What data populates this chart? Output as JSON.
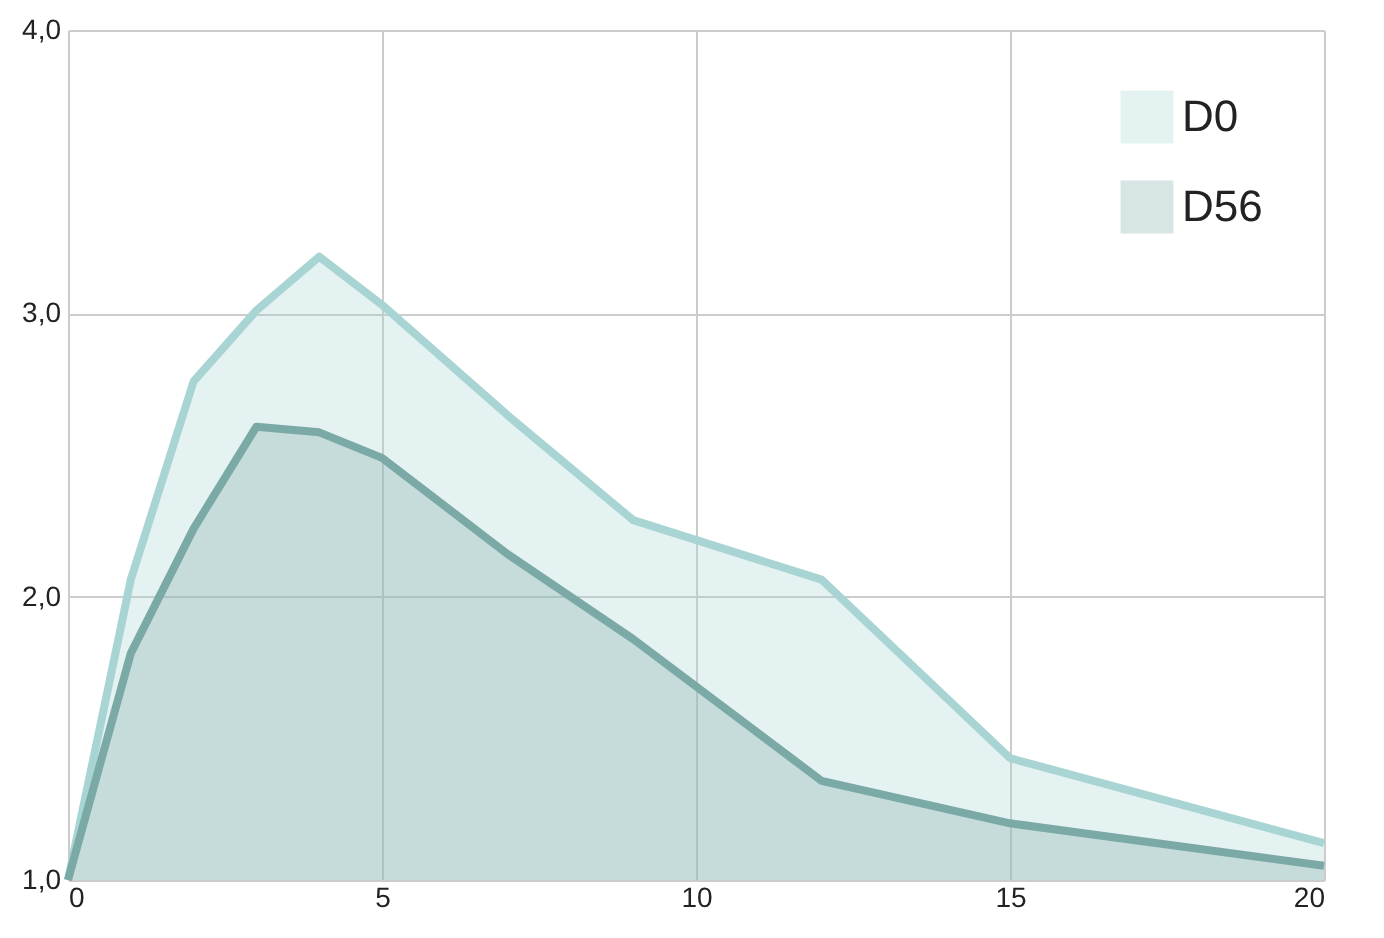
{
  "chart_data": {
    "type": "area",
    "x": [
      0,
      1,
      2,
      3,
      4,
      5,
      7,
      9,
      12,
      15,
      20
    ],
    "series": [
      {
        "name": "D0",
        "color": "#a8d5d3",
        "values": [
          1.0,
          2.06,
          2.76,
          3.01,
          3.2,
          3.03,
          2.64,
          2.27,
          2.06,
          1.43,
          1.13
        ]
      },
      {
        "name": "D56",
        "color": "#7aa9a6",
        "values": [
          1.0,
          1.8,
          2.24,
          2.6,
          2.58,
          2.49,
          2.15,
          1.85,
          1.35,
          1.2,
          1.05
        ]
      }
    ],
    "xlim": [
      0,
      20
    ],
    "xticks": [
      0,
      5,
      10,
      15,
      20
    ],
    "ylim": [
      1,
      4
    ],
    "yticks": [
      {
        "value": 1,
        "label": "1,0"
      },
      {
        "value": 2,
        "label": "2,0"
      },
      {
        "value": 3,
        "label": "3,0"
      },
      {
        "value": 4,
        "label": "4,0"
      }
    ],
    "grid": true,
    "legend": "top right"
  }
}
